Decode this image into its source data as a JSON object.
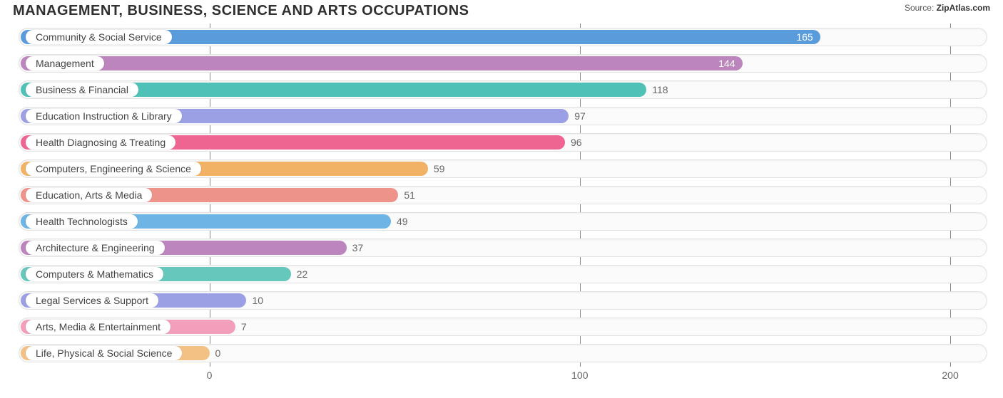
{
  "header": {
    "title": "MANAGEMENT, BUSINESS, SCIENCE AND ARTS OCCUPATIONS",
    "source_prefix": "Source: ",
    "source_name": "ZipAtlas.com"
  },
  "chart": {
    "type": "bar-horizontal",
    "x_axis": {
      "min": -10,
      "max": 210,
      "zero_offset_ratio": 0.197,
      "ticks": [
        {
          "value": 0,
          "label": "0"
        },
        {
          "value": 100,
          "label": "100"
        },
        {
          "value": 200,
          "label": "200"
        }
      ],
      "gridline_color": "#8a8a8a",
      "tick_fontsize": 14,
      "tick_color": "#666666"
    },
    "track": {
      "background": "#fbfbfb",
      "border_color": "#e2e2e2",
      "border_radius": 14
    },
    "label_pill": {
      "background": "#ffffff",
      "fontsize": 14,
      "color": "#444444"
    },
    "value_label": {
      "fontsize": 14,
      "inside_color": "#ffffff",
      "outside_color": "#666666"
    },
    "bars": [
      {
        "label": "Community & Social Service",
        "value": 165,
        "color": "#5a9bdc",
        "value_inside": true
      },
      {
        "label": "Management",
        "value": 144,
        "color": "#bd85bd",
        "value_inside": true
      },
      {
        "label": "Business & Financial",
        "value": 118,
        "color": "#4fc1b6",
        "value_inside": false
      },
      {
        "label": "Education Instruction & Library",
        "value": 97,
        "color": "#9aa0e3",
        "value_inside": false
      },
      {
        "label": "Health Diagnosing & Treating",
        "value": 96,
        "color": "#ef6591",
        "value_inside": false
      },
      {
        "label": "Computers, Engineering & Science",
        "value": 59,
        "color": "#f2b266",
        "value_inside": false
      },
      {
        "label": "Education, Arts & Media",
        "value": 51,
        "color": "#ee938a",
        "value_inside": false
      },
      {
        "label": "Health Technologists",
        "value": 49,
        "color": "#6eb4e4",
        "value_inside": false
      },
      {
        "label": "Architecture & Engineering",
        "value": 37,
        "color": "#bd85bd",
        "value_inside": false
      },
      {
        "label": "Computers & Mathematics",
        "value": 22,
        "color": "#66c7bd",
        "value_inside": false
      },
      {
        "label": "Legal Services & Support",
        "value": 10,
        "color": "#9aa0e3",
        "value_inside": false
      },
      {
        "label": "Arts, Media & Entertainment",
        "value": 7,
        "color": "#f39ebb",
        "value_inside": false
      },
      {
        "label": "Life, Physical & Social Science",
        "value": 0,
        "color": "#f3c184",
        "value_inside": false
      }
    ]
  }
}
